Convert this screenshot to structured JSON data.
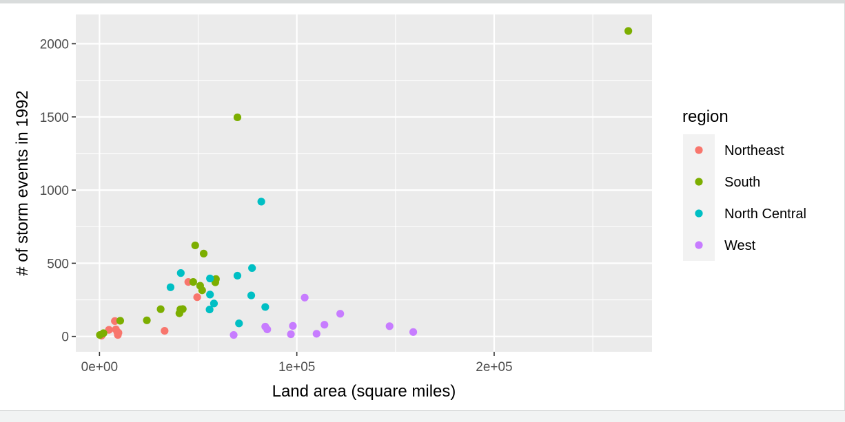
{
  "chart_data": {
    "type": "scatter",
    "title": "",
    "xlabel": "Land area (square miles)",
    "ylabel": "# of storm events in 1992",
    "xlim": [
      -12000,
      280000
    ],
    "ylim": [
      -105,
      2200
    ],
    "x_ticks": [
      0,
      100000,
      200000
    ],
    "x_tick_labels": [
      "0e+00",
      "1e+05",
      "2e+05"
    ],
    "y_ticks": [
      0,
      500,
      1000,
      1500,
      2000
    ],
    "y_tick_labels": [
      "0",
      "500",
      "1000",
      "1500",
      "2000"
    ],
    "grid": true,
    "legend": {
      "title": "region",
      "position": "right"
    },
    "series": [
      {
        "name": "Northeast",
        "color": "#F8766D",
        "points": [
          [
            1000,
            5
          ],
          [
            4800,
            45
          ],
          [
            7800,
            105
          ],
          [
            8300,
            48
          ],
          [
            9000,
            30
          ],
          [
            9300,
            10
          ],
          [
            9600,
            25
          ],
          [
            33000,
            38
          ],
          [
            45000,
            372
          ],
          [
            49500,
            268
          ]
        ]
      },
      {
        "name": "South",
        "color": "#7CAE00",
        "points": [
          [
            200,
            10
          ],
          [
            2000,
            22
          ],
          [
            10500,
            107
          ],
          [
            24000,
            110
          ],
          [
            31000,
            186
          ],
          [
            40500,
            158
          ],
          [
            41000,
            185
          ],
          [
            42200,
            187
          ],
          [
            47500,
            372
          ],
          [
            48500,
            622
          ],
          [
            51000,
            346
          ],
          [
            52000,
            315
          ],
          [
            52800,
            566
          ],
          [
            58700,
            370
          ],
          [
            59000,
            392
          ],
          [
            69900,
            1497
          ],
          [
            268000,
            2087
          ]
        ]
      },
      {
        "name": "North Central",
        "color": "#00BFC4",
        "points": [
          [
            36000,
            336
          ],
          [
            41200,
            433
          ],
          [
            55800,
            184
          ],
          [
            56000,
            396
          ],
          [
            56000,
            286
          ],
          [
            58000,
            225
          ],
          [
            69900,
            415
          ],
          [
            70700,
            89
          ],
          [
            76900,
            280
          ],
          [
            77300,
            467
          ],
          [
            82000,
            921
          ],
          [
            84000,
            201
          ]
        ]
      },
      {
        "name": "West",
        "color": "#C77CFF",
        "points": [
          [
            68000,
            10
          ],
          [
            84000,
            67
          ],
          [
            85000,
            48
          ],
          [
            97000,
            15
          ],
          [
            98000,
            72
          ],
          [
            104000,
            265
          ],
          [
            110000,
            18
          ],
          [
            114000,
            80
          ],
          [
            122000,
            155
          ],
          [
            147000,
            70
          ],
          [
            159000,
            30
          ]
        ]
      }
    ]
  }
}
